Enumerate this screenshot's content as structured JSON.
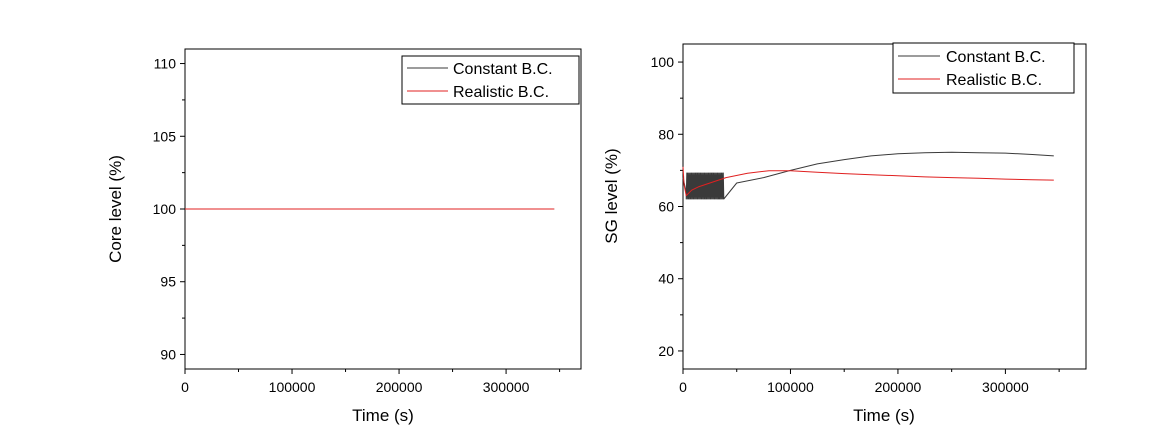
{
  "chart_data": [
    {
      "type": "line",
      "xlabel": "Time (s)",
      "ylabel": "Core level (%)",
      "xlim": [
        0,
        370000
      ],
      "ylim": [
        89,
        111
      ],
      "xticks": [
        0,
        100000,
        200000,
        300000
      ],
      "xtick_labels": [
        "0",
        "100000",
        "200000",
        "300000"
      ],
      "yticks": [
        90,
        95,
        100,
        105,
        110
      ],
      "ytick_labels": [
        "90",
        "95",
        "100",
        "105",
        "110"
      ],
      "grid": false,
      "legend_position": "top-right",
      "legend": [
        "Constant B.C.",
        "Realistic B.C."
      ],
      "series": [
        {
          "name": "Constant B.C.",
          "color": "#3a3a3a",
          "x": [
            0,
            345000
          ],
          "y": [
            100,
            100
          ]
        },
        {
          "name": "Realistic B.C.",
          "color": "#e02020",
          "x": [
            0,
            345000
          ],
          "y": [
            100,
            100
          ]
        }
      ]
    },
    {
      "type": "line",
      "xlabel": "Time (s)",
      "ylabel": "SG level (%)",
      "xlim": [
        0,
        375000
      ],
      "ylim": [
        15,
        105
      ],
      "xticks": [
        0,
        100000,
        200000,
        300000
      ],
      "xtick_labels": [
        "0",
        "100000",
        "200000",
        "300000"
      ],
      "yticks": [
        20,
        40,
        60,
        80,
        100
      ],
      "ytick_labels": [
        "20",
        "40",
        "60",
        "80",
        "100"
      ],
      "grid": false,
      "legend_position": "top-right",
      "legend": [
        "Constant B.C.",
        "Realistic B.C."
      ],
      "series": [
        {
          "name": "Constant B.C.",
          "color": "#3a3a3a",
          "x": [
            0,
            3000,
            10000,
            20000,
            30000,
            38000,
            50000,
            75000,
            100000,
            125000,
            150000,
            175000,
            200000,
            225000,
            250000,
            275000,
            300000,
            325000,
            345000
          ],
          "y": [
            68,
            64,
            65,
            66,
            67,
            65,
            66.5,
            68,
            70,
            71.8,
            73,
            74,
            74.6,
            74.9,
            75,
            74.9,
            74.8,
            74.4,
            74
          ],
          "oscillation_range": [
            3000,
            38000
          ],
          "oscillation_band": [
            61,
            70
          ]
        },
        {
          "name": "Realistic B.C.",
          "color": "#e02020",
          "x": [
            0,
            1000,
            3000,
            8000,
            15000,
            25000,
            40000,
            60000,
            80000,
            100000,
            125000,
            150000,
            175000,
            200000,
            225000,
            250000,
            275000,
            300000,
            325000,
            345000
          ],
          "y": [
            71,
            66,
            63,
            64.5,
            65.5,
            66.5,
            68,
            69.2,
            69.9,
            69.9,
            69.5,
            69.1,
            68.8,
            68.5,
            68.2,
            68,
            67.8,
            67.6,
            67.4,
            67.3
          ]
        }
      ]
    }
  ]
}
